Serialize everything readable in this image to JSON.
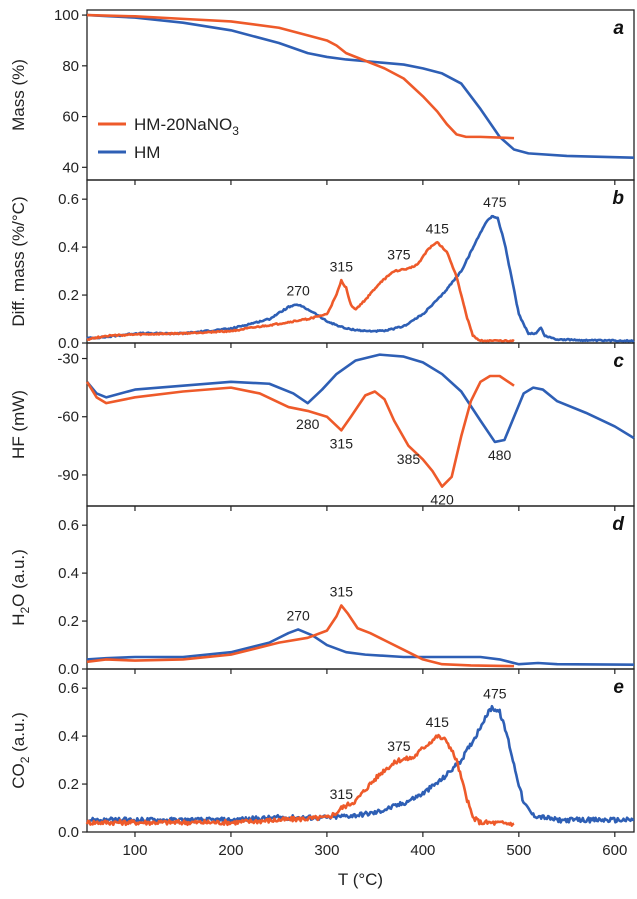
{
  "colors": {
    "hm": "#2E5FB5",
    "hm_nano3": "#EE5A2A",
    "axis": "#222222"
  },
  "chart_data": {
    "type": "line",
    "xlabel": "T (°C)",
    "xlim": [
      50,
      620
    ],
    "xticks": [
      100,
      200,
      300,
      400,
      500,
      600
    ],
    "legend": {
      "placement": "panel-a-lower-left",
      "items": [
        {
          "key": "hm_nano3",
          "label": "HM-20NaNO",
          "sub": "3"
        },
        {
          "key": "hm",
          "label": "HM",
          "sub": ""
        }
      ]
    },
    "panels": [
      {
        "letter": "a",
        "ylabel": "Mass (%)",
        "ylim": [
          35,
          102
        ],
        "yticks": [
          40,
          60,
          80,
          100
        ],
        "series": {
          "hm": [
            [
              50,
              100
            ],
            [
              100,
              99
            ],
            [
              150,
              97
            ],
            [
              200,
              94
            ],
            [
              250,
              89
            ],
            [
              280,
              85
            ],
            [
              300,
              83.5
            ],
            [
              320,
              82.5
            ],
            [
              350,
              81.5
            ],
            [
              380,
              80.5
            ],
            [
              400,
              79
            ],
            [
              420,
              77
            ],
            [
              440,
              73
            ],
            [
              460,
              63
            ],
            [
              480,
              52
            ],
            [
              495,
              47
            ],
            [
              510,
              45.5
            ],
            [
              550,
              44.5
            ],
            [
              600,
              44
            ],
            [
              620,
              43.8
            ]
          ],
          "hm_nano3": [
            [
              50,
              100
            ],
            [
              100,
              99.5
            ],
            [
              150,
              98.5
            ],
            [
              200,
              97.5
            ],
            [
              250,
              95
            ],
            [
              280,
              92
            ],
            [
              300,
              90
            ],
            [
              310,
              88
            ],
            [
              320,
              85
            ],
            [
              340,
              82
            ],
            [
              360,
              79
            ],
            [
              380,
              75
            ],
            [
              400,
              68
            ],
            [
              415,
              62
            ],
            [
              425,
              57
            ],
            [
              435,
              53
            ],
            [
              445,
              52
            ],
            [
              460,
              52
            ],
            [
              495,
              51.5
            ]
          ]
        },
        "annotations": []
      },
      {
        "letter": "b",
        "ylabel": "Diff. mass (%/°C)",
        "ylim": [
          0,
          0.68
        ],
        "yticks": [
          0.0,
          0.2,
          0.4,
          0.6
        ],
        "series": {
          "hm": [
            [
              50,
              0.02
            ],
            [
              70,
              0.025
            ],
            [
              100,
              0.04
            ],
            [
              150,
              0.04
            ],
            [
              200,
              0.06
            ],
            [
              240,
              0.1
            ],
            [
              260,
              0.15
            ],
            [
              270,
              0.16
            ],
            [
              285,
              0.13
            ],
            [
              300,
              0.09
            ],
            [
              320,
              0.06
            ],
            [
              340,
              0.05
            ],
            [
              360,
              0.05
            ],
            [
              380,
              0.07
            ],
            [
              400,
              0.12
            ],
            [
              420,
              0.2
            ],
            [
              440,
              0.3
            ],
            [
              455,
              0.42
            ],
            [
              465,
              0.5
            ],
            [
              472,
              0.53
            ],
            [
              478,
              0.52
            ],
            [
              485,
              0.42
            ],
            [
              492,
              0.28
            ],
            [
              500,
              0.12
            ],
            [
              510,
              0.04
            ],
            [
              518,
              0.04
            ],
            [
              523,
              0.065
            ],
            [
              527,
              0.03
            ],
            [
              540,
              0.015
            ],
            [
              580,
              0.01
            ],
            [
              620,
              0.01
            ]
          ],
          "hm_nano3": [
            [
              50,
              0.015
            ],
            [
              70,
              0.03
            ],
            [
              100,
              0.035
            ],
            [
              150,
              0.04
            ],
            [
              200,
              0.05
            ],
            [
              250,
              0.08
            ],
            [
              280,
              0.1
            ],
            [
              300,
              0.12
            ],
            [
              310,
              0.2
            ],
            [
              315,
              0.26
            ],
            [
              320,
              0.23
            ],
            [
              325,
              0.16
            ],
            [
              330,
              0.14
            ],
            [
              340,
              0.18
            ],
            [
              355,
              0.25
            ],
            [
              370,
              0.3
            ],
            [
              385,
              0.31
            ],
            [
              395,
              0.33
            ],
            [
              405,
              0.39
            ],
            [
              415,
              0.42
            ],
            [
              425,
              0.38
            ],
            [
              435,
              0.28
            ],
            [
              445,
              0.12
            ],
            [
              452,
              0.03
            ],
            [
              460,
              0.01
            ],
            [
              495,
              0.008
            ]
          ]
        },
        "annotations": [
          {
            "x": 270,
            "y": 0.16,
            "text": "270"
          },
          {
            "x": 315,
            "y": 0.26,
            "text": "315"
          },
          {
            "x": 375,
            "y": 0.31,
            "text": "375"
          },
          {
            "x": 415,
            "y": 0.42,
            "text": "415"
          },
          {
            "x": 475,
            "y": 0.53,
            "text": "475"
          }
        ]
      },
      {
        "letter": "c",
        "ylabel": "HF (mW)",
        "ylim": [
          -106,
          -22
        ],
        "yticks": [
          -90,
          -60,
          -30
        ],
        "series": {
          "hm": [
            [
              50,
              -42
            ],
            [
              60,
              -48
            ],
            [
              70,
              -50
            ],
            [
              100,
              -46
            ],
            [
              150,
              -44
            ],
            [
              200,
              -42
            ],
            [
              240,
              -43
            ],
            [
              265,
              -48
            ],
            [
              280,
              -53
            ],
            [
              295,
              -46
            ],
            [
              310,
              -38
            ],
            [
              330,
              -31
            ],
            [
              355,
              -28
            ],
            [
              380,
              -29
            ],
            [
              400,
              -32
            ],
            [
              420,
              -38
            ],
            [
              440,
              -47
            ],
            [
              460,
              -62
            ],
            [
              475,
              -73
            ],
            [
              485,
              -72
            ],
            [
              495,
              -60
            ],
            [
              505,
              -48
            ],
            [
              515,
              -45
            ],
            [
              525,
              -46
            ],
            [
              540,
              -52
            ],
            [
              570,
              -58
            ],
            [
              600,
              -65
            ],
            [
              620,
              -71
            ]
          ],
          "hm_nano3": [
            [
              50,
              -42
            ],
            [
              60,
              -50
            ],
            [
              70,
              -53
            ],
            [
              100,
              -50
            ],
            [
              150,
              -47
            ],
            [
              200,
              -45
            ],
            [
              230,
              -48
            ],
            [
              260,
              -55
            ],
            [
              280,
              -57
            ],
            [
              300,
              -60
            ],
            [
              315,
              -67
            ],
            [
              325,
              -60
            ],
            [
              340,
              -49
            ],
            [
              350,
              -47
            ],
            [
              360,
              -51
            ],
            [
              370,
              -62
            ],
            [
              385,
              -75
            ],
            [
              400,
              -82
            ],
            [
              410,
              -88
            ],
            [
              420,
              -96
            ],
            [
              430,
              -91
            ],
            [
              440,
              -70
            ],
            [
              450,
              -52
            ],
            [
              460,
              -42
            ],
            [
              470,
              -39
            ],
            [
              480,
              -39
            ],
            [
              495,
              -44
            ]
          ]
        },
        "annotations": [
          {
            "x": 280,
            "y": -57,
            "text": "280",
            "below": true
          },
          {
            "x": 315,
            "y": -67,
            "text": "315",
            "below": true
          },
          {
            "x": 385,
            "y": -75,
            "text": "385",
            "below": true
          },
          {
            "x": 420,
            "y": -96,
            "text": "420",
            "below": true
          },
          {
            "x": 480,
            "y": -73,
            "text": "480",
            "below": true
          }
        ]
      },
      {
        "letter": "d",
        "ylabel_main": "H",
        "ylabel_sub": "2",
        "ylabel_tail": "O (a.u.)",
        "ylim": [
          0,
          0.68
        ],
        "yticks": [
          0.0,
          0.2,
          0.4,
          0.6
        ],
        "series": {
          "hm": [
            [
              50,
              0.04
            ],
            [
              70,
              0.045
            ],
            [
              100,
              0.05
            ],
            [
              150,
              0.05
            ],
            [
              200,
              0.07
            ],
            [
              240,
              0.11
            ],
            [
              260,
              0.15
            ],
            [
              270,
              0.165
            ],
            [
              285,
              0.14
            ],
            [
              300,
              0.1
            ],
            [
              320,
              0.07
            ],
            [
              340,
              0.06
            ],
            [
              380,
              0.05
            ],
            [
              420,
              0.05
            ],
            [
              460,
              0.05
            ],
            [
              480,
              0.04
            ],
            [
              500,
              0.02
            ],
            [
              520,
              0.025
            ],
            [
              540,
              0.02
            ],
            [
              620,
              0.018
            ]
          ],
          "hm_nano3": [
            [
              50,
              0.03
            ],
            [
              70,
              0.04
            ],
            [
              100,
              0.035
            ],
            [
              150,
              0.04
            ],
            [
              200,
              0.06
            ],
            [
              250,
              0.11
            ],
            [
              280,
              0.13
            ],
            [
              300,
              0.16
            ],
            [
              310,
              0.22
            ],
            [
              315,
              0.265
            ],
            [
              322,
              0.23
            ],
            [
              332,
              0.17
            ],
            [
              345,
              0.15
            ],
            [
              360,
              0.12
            ],
            [
              380,
              0.08
            ],
            [
              400,
              0.04
            ],
            [
              420,
              0.02
            ],
            [
              450,
              0.015
            ],
            [
              495,
              0.012
            ]
          ]
        },
        "annotations": [
          {
            "x": 270,
            "y": 0.165,
            "text": "270"
          },
          {
            "x": 315,
            "y": 0.265,
            "text": "315"
          }
        ]
      },
      {
        "letter": "e",
        "ylabel_main": "CO",
        "ylabel_sub": "2",
        "ylabel_tail": " (a.u.)",
        "ylim": [
          0,
          0.68
        ],
        "yticks": [
          0.0,
          0.2,
          0.4,
          0.6
        ],
        "series": {
          "hm": [
            [
              50,
              0.05
            ],
            [
              100,
              0.05
            ],
            [
              150,
              0.05
            ],
            [
              200,
              0.05
            ],
            [
              250,
              0.06
            ],
            [
              280,
              0.06
            ],
            [
              300,
              0.06
            ],
            [
              330,
              0.07
            ],
            [
              350,
              0.08
            ],
            [
              380,
              0.12
            ],
            [
              400,
              0.16
            ],
            [
              420,
              0.22
            ],
            [
              440,
              0.3
            ],
            [
              455,
              0.4
            ],
            [
              465,
              0.48
            ],
            [
              472,
              0.52
            ],
            [
              480,
              0.5
            ],
            [
              488,
              0.4
            ],
            [
              495,
              0.28
            ],
            [
              505,
              0.12
            ],
            [
              515,
              0.07
            ],
            [
              540,
              0.05
            ],
            [
              580,
              0.05
            ],
            [
              620,
              0.05
            ]
          ],
          "hm_nano3": [
            [
              50,
              0.04
            ],
            [
              100,
              0.04
            ],
            [
              150,
              0.04
            ],
            [
              200,
              0.04
            ],
            [
              250,
              0.05
            ],
            [
              300,
              0.06
            ],
            [
              310,
              0.08
            ],
            [
              315,
              0.1
            ],
            [
              330,
              0.13
            ],
            [
              345,
              0.2
            ],
            [
              360,
              0.26
            ],
            [
              375,
              0.3
            ],
            [
              390,
              0.31
            ],
            [
              400,
              0.35
            ],
            [
              415,
              0.4
            ],
            [
              425,
              0.38
            ],
            [
              435,
              0.3
            ],
            [
              445,
              0.15
            ],
            [
              452,
              0.06
            ],
            [
              460,
              0.04
            ],
            [
              495,
              0.035
            ]
          ]
        },
        "annotations": [
          {
            "x": 315,
            "y": 0.1,
            "text": "315"
          },
          {
            "x": 375,
            "y": 0.3,
            "text": "375"
          },
          {
            "x": 415,
            "y": 0.4,
            "text": "415"
          },
          {
            "x": 475,
            "y": 0.52,
            "text": "475"
          }
        ]
      }
    ]
  }
}
